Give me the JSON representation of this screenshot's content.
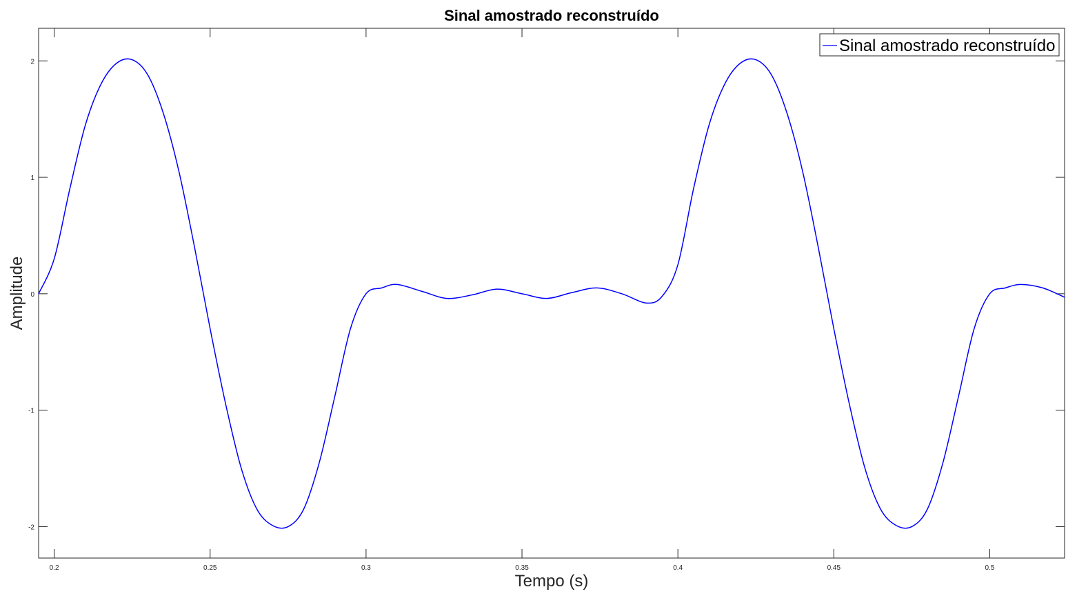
{
  "chart_data": {
    "type": "line",
    "title": "Sinal amostrado reconstruído",
    "xlabel": "Tempo (s)",
    "ylabel": "Amplitude",
    "xlim": [
      0.195,
      0.524
    ],
    "ylim": [
      -2.27,
      2.28
    ],
    "xticks": [
      0.2,
      0.25,
      0.3,
      0.35,
      0.4,
      0.45,
      0.5
    ],
    "xtick_labels": [
      "0.2",
      "0.25",
      "0.3",
      "0.35",
      "0.4",
      "0.45",
      "0.5"
    ],
    "yticks": [
      2,
      1,
      0,
      -1,
      -2
    ],
    "ytick_labels": [
      "2",
      "1",
      "0",
      "-1",
      "-2"
    ],
    "grid": false,
    "legend_position": "top-right",
    "series": [
      {
        "name": "Sinal amostrado reconstruído",
        "color": "#0000ff",
        "x": [
          0.195,
          0.2,
          0.205,
          0.21,
          0.215,
          0.22,
          0.225,
          0.23,
          0.235,
          0.24,
          0.245,
          0.25,
          0.255,
          0.26,
          0.265,
          0.27,
          0.275,
          0.28,
          0.285,
          0.29,
          0.295,
          0.3,
          0.305,
          0.31,
          0.318,
          0.326,
          0.334,
          0.342,
          0.35,
          0.358,
          0.366,
          0.374,
          0.382,
          0.39,
          0.395,
          0.4,
          0.405,
          0.41,
          0.415,
          0.42,
          0.425,
          0.43,
          0.435,
          0.44,
          0.445,
          0.45,
          0.455,
          0.46,
          0.465,
          0.47,
          0.475,
          0.48,
          0.485,
          0.49,
          0.495,
          0.5,
          0.505,
          0.51,
          0.517,
          0.524
        ],
        "y": [
          0.0,
          0.3,
          0.9,
          1.45,
          1.8,
          1.98,
          2.01,
          1.88,
          1.55,
          1.05,
          0.4,
          -0.3,
          -0.95,
          -1.5,
          -1.85,
          -1.99,
          -2.0,
          -1.85,
          -1.45,
          -0.88,
          -0.3,
          0.0,
          0.05,
          0.08,
          0.02,
          -0.04,
          -0.01,
          0.04,
          0.0,
          -0.04,
          0.01,
          0.05,
          0.0,
          -0.08,
          -0.02,
          0.25,
          0.9,
          1.45,
          1.8,
          1.98,
          2.01,
          1.88,
          1.55,
          1.05,
          0.4,
          -0.3,
          -0.95,
          -1.5,
          -1.85,
          -1.99,
          -2.0,
          -1.85,
          -1.45,
          -0.88,
          -0.3,
          0.0,
          0.05,
          0.08,
          0.05,
          -0.03
        ]
      }
    ]
  }
}
